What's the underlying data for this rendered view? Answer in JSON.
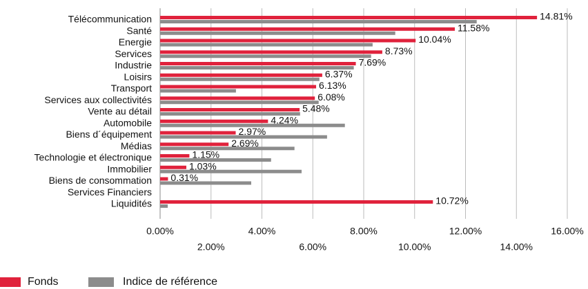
{
  "chart_data": {
    "type": "barh",
    "categories": [
      "Télécommunication",
      "Santé",
      "Energie",
      "Services",
      "Industrie",
      "Loisirs",
      "Transport",
      "Services aux collectivités",
      "Vente au détail",
      "Automobile",
      "Biens d´équipement",
      "Médias",
      "Technologie et électronique",
      "Immobilier",
      "Biens de consommation",
      "Services Financiers",
      "Liquidités"
    ],
    "series": [
      {
        "name": "Fonds",
        "color": "#e0223c",
        "values": [
          14.81,
          11.58,
          10.04,
          8.73,
          7.69,
          6.37,
          6.13,
          6.08,
          5.48,
          4.24,
          2.97,
          2.69,
          1.15,
          1.03,
          0.31,
          null,
          10.72
        ],
        "value_labels": [
          "14.81%",
          "11.58%",
          "10.04%",
          "8.73%",
          "7.69%",
          "6.37%",
          "6.13%",
          "6.08%",
          "5.48%",
          "4.24%",
          "2.97%",
          "2.69%",
          "1.15%",
          "1.03%",
          "0.31%",
          null,
          "10.72%"
        ]
      },
      {
        "name": "Indice de référence",
        "color": "#8c8c8c",
        "values": [
          12.44,
          9.24,
          8.35,
          8.29,
          7.61,
          6.26,
          2.98,
          6.23,
          5.5,
          7.26,
          6.56,
          5.28,
          4.36,
          5.56,
          3.58,
          null,
          0.3
        ]
      }
    ],
    "xlim": [
      0,
      16
    ],
    "xticks": [
      {
        "value": 0,
        "label": "0.00%"
      },
      {
        "value": 2,
        "label": "2.00%"
      },
      {
        "value": 4,
        "label": "4.00%"
      },
      {
        "value": 6,
        "label": "6.00%"
      },
      {
        "value": 8,
        "label": "8.00%"
      },
      {
        "value": 10,
        "label": "10.00%"
      },
      {
        "value": 12,
        "label": "12.00%"
      },
      {
        "value": 14,
        "label": "14.00%"
      },
      {
        "value": 16,
        "label": "16.00%"
      }
    ],
    "grid": true
  }
}
